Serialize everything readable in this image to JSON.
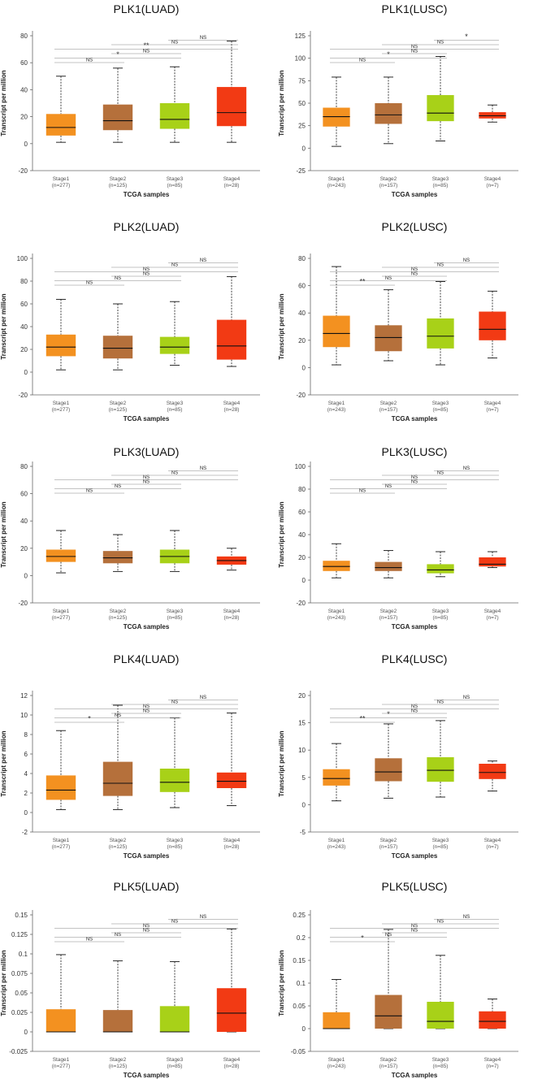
{
  "chart_data": [
    {
      "type": "box",
      "title": "PLK1(LUAD)",
      "xlabel": "TCGA samples",
      "ylabel": "Transcript per million",
      "ylim": [
        -20,
        80
      ],
      "yticks": [
        -20,
        0,
        20,
        40,
        60,
        80
      ],
      "yticklabels": [
        "-20",
        "0",
        "20",
        "40",
        "60",
        "80"
      ],
      "categories": [
        "Stage1",
        "Stage2",
        "Stage3",
        "Stage4"
      ],
      "counts": [
        "(n=277)",
        "(n=125)",
        "(n=85)",
        "(n=28)"
      ],
      "colors": [
        "#f39120",
        "#b5703b",
        "#a8d118",
        "#f23a14"
      ],
      "boxes": [
        {
          "min": 1,
          "q1": 6,
          "median": 12,
          "q3": 22,
          "max": 50
        },
        {
          "min": 1,
          "q1": 10,
          "median": 17,
          "q3": 29,
          "max": 56
        },
        {
          "min": 1,
          "q1": 11,
          "median": 18,
          "q3": 30,
          "max": 57
        },
        {
          "min": 1,
          "q1": 13,
          "median": 23,
          "q3": 42,
          "max": 76
        }
      ],
      "comparisons": [
        {
          "from": 0,
          "to": 1,
          "label": "NS"
        },
        {
          "from": 0,
          "to": 2,
          "label": "*"
        },
        {
          "from": 0,
          "to": 3,
          "label": "**"
        },
        {
          "from": 1,
          "to": 2,
          "label": "NS"
        },
        {
          "from": 1,
          "to": 3,
          "label": "NS"
        },
        {
          "from": 2,
          "to": 3,
          "label": "NS"
        }
      ]
    },
    {
      "type": "box",
      "title": "PLK1(LUSC)",
      "xlabel": "TCGA samples",
      "ylabel": "Transcript per million",
      "ylim": [
        -25,
        125
      ],
      "yticks": [
        -25,
        0,
        25,
        50,
        75,
        100,
        125
      ],
      "yticklabels": [
        "-25",
        "0",
        "25",
        "50",
        "75",
        "100",
        "125"
      ],
      "categories": [
        "Stage1",
        "Stage2",
        "Stage3",
        "Stage4"
      ],
      "counts": [
        "(n=243)",
        "(n=157)",
        "(n=85)",
        "(n=7)"
      ],
      "colors": [
        "#f39120",
        "#b5703b",
        "#a8d118",
        "#f23a14"
      ],
      "boxes": [
        {
          "min": 2,
          "q1": 24,
          "median": 35,
          "q3": 45,
          "max": 79
        },
        {
          "min": 5,
          "q1": 27,
          "median": 37,
          "q3": 50,
          "max": 79
        },
        {
          "min": 8,
          "q1": 30,
          "median": 39,
          "q3": 59,
          "max": 102
        },
        {
          "min": 29,
          "q1": 33,
          "median": 36,
          "q3": 40,
          "max": 48
        }
      ],
      "comparisons": [
        {
          "from": 0,
          "to": 1,
          "label": "NS"
        },
        {
          "from": 0,
          "to": 2,
          "label": "*"
        },
        {
          "from": 0,
          "to": 3,
          "label": "NS"
        },
        {
          "from": 1,
          "to": 2,
          "label": "NS"
        },
        {
          "from": 1,
          "to": 3,
          "label": "NS"
        },
        {
          "from": 2,
          "to": 3,
          "label": "*"
        }
      ]
    },
    {
      "type": "box",
      "title": "PLK2(LUAD)",
      "xlabel": "TCGA samples",
      "ylabel": "Transcript per million",
      "ylim": [
        -20,
        100
      ],
      "yticks": [
        -20,
        0,
        20,
        40,
        60,
        80,
        100
      ],
      "yticklabels": [
        "-20",
        "0",
        "20",
        "40",
        "60",
        "80",
        "100"
      ],
      "categories": [
        "Stage1",
        "Stage2",
        "Stage3",
        "Stage4"
      ],
      "counts": [
        "(n=277)",
        "(n=125)",
        "(n=85)",
        "(n=28)"
      ],
      "colors": [
        "#f39120",
        "#b5703b",
        "#a8d118",
        "#f23a14"
      ],
      "boxes": [
        {
          "min": 2,
          "q1": 14,
          "median": 22,
          "q3": 33,
          "max": 64
        },
        {
          "min": 2,
          "q1": 12,
          "median": 21,
          "q3": 32,
          "max": 60
        },
        {
          "min": 6,
          "q1": 16,
          "median": 22,
          "q3": 31,
          "max": 62
        },
        {
          "min": 5,
          "q1": 11,
          "median": 23,
          "q3": 46,
          "max": 84
        }
      ],
      "comparisons": [
        {
          "from": 0,
          "to": 1,
          "label": "NS"
        },
        {
          "from": 0,
          "to": 2,
          "label": "NS"
        },
        {
          "from": 0,
          "to": 3,
          "label": "NS"
        },
        {
          "from": 1,
          "to": 2,
          "label": "NS"
        },
        {
          "from": 1,
          "to": 3,
          "label": "NS"
        },
        {
          "from": 2,
          "to": 3,
          "label": "NS"
        }
      ]
    },
    {
      "type": "box",
      "title": "PLK2(LUSC)",
      "xlabel": "TCGA samples",
      "ylabel": "Transcript per million",
      "ylim": [
        -20,
        80
      ],
      "yticks": [
        -20,
        0,
        20,
        40,
        60,
        80
      ],
      "yticklabels": [
        "-20",
        "0",
        "20",
        "40",
        "60",
        "80"
      ],
      "categories": [
        "Stage1",
        "Stage2",
        "Stage3",
        "Stage4"
      ],
      "counts": [
        "(n=243)",
        "(n=157)",
        "(n=85)",
        "(n=7)"
      ],
      "colors": [
        "#f39120",
        "#b5703b",
        "#a8d118",
        "#f23a14"
      ],
      "boxes": [
        {
          "min": 2,
          "q1": 15,
          "median": 25,
          "q3": 38,
          "max": 74
        },
        {
          "min": 5,
          "q1": 12,
          "median": 22,
          "q3": 31,
          "max": 57
        },
        {
          "min": 2,
          "q1": 14,
          "median": 23,
          "q3": 36,
          "max": 63
        },
        {
          "min": 7,
          "q1": 20,
          "median": 28,
          "q3": 41,
          "max": 56
        }
      ],
      "comparisons": [
        {
          "from": 0,
          "to": 1,
          "label": "**"
        },
        {
          "from": 0,
          "to": 2,
          "label": "NS"
        },
        {
          "from": 0,
          "to": 3,
          "label": "NS"
        },
        {
          "from": 1,
          "to": 2,
          "label": "NS"
        },
        {
          "from": 1,
          "to": 3,
          "label": "NS"
        },
        {
          "from": 2,
          "to": 3,
          "label": "NS"
        }
      ]
    },
    {
      "type": "box",
      "title": "PLK3(LUAD)",
      "xlabel": "TCGA samples",
      "ylabel": "Transcript per million",
      "ylim": [
        -20,
        80
      ],
      "yticks": [
        -20,
        0,
        20,
        40,
        60,
        80
      ],
      "yticklabels": [
        "-20",
        "0",
        "20",
        "40",
        "60",
        "80"
      ],
      "categories": [
        "Stage1",
        "Stage2",
        "Stage3",
        "Stage4"
      ],
      "counts": [
        "(n=277)",
        "(n=125)",
        "(n=85)",
        "(n=28)"
      ],
      "colors": [
        "#f39120",
        "#b5703b",
        "#a8d118",
        "#f23a14"
      ],
      "boxes": [
        {
          "min": 2,
          "q1": 10,
          "median": 14,
          "q3": 19,
          "max": 33
        },
        {
          "min": 3,
          "q1": 9,
          "median": 13,
          "q3": 18,
          "max": 30
        },
        {
          "min": 3,
          "q1": 9,
          "median": 14,
          "q3": 19,
          "max": 33
        },
        {
          "min": 4,
          "q1": 8,
          "median": 11,
          "q3": 14,
          "max": 20
        }
      ],
      "comparisons": [
        {
          "from": 0,
          "to": 1,
          "label": "NS"
        },
        {
          "from": 0,
          "to": 2,
          "label": "NS"
        },
        {
          "from": 0,
          "to": 3,
          "label": "NS"
        },
        {
          "from": 1,
          "to": 2,
          "label": "NS"
        },
        {
          "from": 1,
          "to": 3,
          "label": "NS"
        },
        {
          "from": 2,
          "to": 3,
          "label": "NS"
        }
      ]
    },
    {
      "type": "box",
      "title": "PLK3(LUSC)",
      "xlabel": "TCGA samples",
      "ylabel": "Transcript per million",
      "ylim": [
        -20,
        100
      ],
      "yticks": [
        -20,
        0,
        20,
        40,
        60,
        80,
        100
      ],
      "yticklabels": [
        "-20",
        "0",
        "20",
        "40",
        "60",
        "80",
        "100"
      ],
      "categories": [
        "Stage1",
        "Stage2",
        "Stage3",
        "Stage4"
      ],
      "counts": [
        "(n=243)",
        "(n=157)",
        "(n=85)",
        "(n=7)"
      ],
      "colors": [
        "#f39120",
        "#b5703b",
        "#a8d118",
        "#f23a14"
      ],
      "boxes": [
        {
          "min": 2,
          "q1": 8,
          "median": 12,
          "q3": 17,
          "max": 32
        },
        {
          "min": 2,
          "q1": 8,
          "median": 11,
          "q3": 16,
          "max": 26
        },
        {
          "min": 3,
          "q1": 6,
          "median": 9,
          "q3": 14,
          "max": 25
        },
        {
          "min": 11,
          "q1": 12,
          "median": 14,
          "q3": 20,
          "max": 25
        }
      ],
      "comparisons": [
        {
          "from": 0,
          "to": 1,
          "label": "NS"
        },
        {
          "from": 0,
          "to": 2,
          "label": "NS"
        },
        {
          "from": 0,
          "to": 3,
          "label": "NS"
        },
        {
          "from": 1,
          "to": 2,
          "label": "NS"
        },
        {
          "from": 1,
          "to": 3,
          "label": "NS"
        },
        {
          "from": 2,
          "to": 3,
          "label": "NS"
        }
      ]
    },
    {
      "type": "box",
      "title": "PLK4(LUAD)",
      "xlabel": "TCGA samples",
      "ylabel": "Transcript per million",
      "ylim": [
        -2,
        12
      ],
      "yticks": [
        -2,
        0,
        2,
        4,
        6,
        8,
        10,
        12
      ],
      "yticklabels": [
        "-2",
        "0",
        "2",
        "4",
        "6",
        "8",
        "10",
        "12"
      ],
      "categories": [
        "Stage1",
        "Stage2",
        "Stage3",
        "Stage4"
      ],
      "counts": [
        "(n=277)",
        "(n=125)",
        "(n=85)",
        "(n=28)"
      ],
      "colors": [
        "#f39120",
        "#b5703b",
        "#a8d118",
        "#f23a14"
      ],
      "boxes": [
        {
          "min": 0.3,
          "q1": 1.3,
          "median": 2.3,
          "q3": 3.8,
          "max": 8.4
        },
        {
          "min": 0.3,
          "q1": 1.7,
          "median": 3.0,
          "q3": 5.2,
          "max": 11.0
        },
        {
          "min": 0.5,
          "q1": 2.1,
          "median": 3.1,
          "q3": 4.5,
          "max": 9.7
        },
        {
          "min": 0.7,
          "q1": 2.5,
          "median": 3.2,
          "q3": 4.1,
          "max": 10.2
        }
      ],
      "comparisons": [
        {
          "from": 0,
          "to": 1,
          "label": "*"
        },
        {
          "from": 0,
          "to": 2,
          "label": "NS"
        },
        {
          "from": 0,
          "to": 3,
          "label": "NS"
        },
        {
          "from": 1,
          "to": 2,
          "label": "NS"
        },
        {
          "from": 1,
          "to": 3,
          "label": "NS"
        },
        {
          "from": 2,
          "to": 3,
          "label": "NS"
        }
      ]
    },
    {
      "type": "box",
      "title": "PLK4(LUSC)",
      "xlabel": "TCGA samples",
      "ylabel": "Transcript per million",
      "ylim": [
        -5,
        20
      ],
      "yticks": [
        -5,
        0,
        5,
        10,
        15,
        20
      ],
      "yticklabels": [
        "-5",
        "0",
        "5",
        "10",
        "15",
        "20"
      ],
      "categories": [
        "Stage1",
        "Stage2",
        "Stage3",
        "Stage4"
      ],
      "counts": [
        "(n=243)",
        "(n=157)",
        "(n=85)",
        "(n=7)"
      ],
      "colors": [
        "#f39120",
        "#b5703b",
        "#a8d118",
        "#f23a14"
      ],
      "boxes": [
        {
          "min": 0.7,
          "q1": 3.5,
          "median": 4.8,
          "q3": 6.5,
          "max": 11.2
        },
        {
          "min": 1.2,
          "q1": 4.3,
          "median": 6.0,
          "q3": 8.5,
          "max": 14.8
        },
        {
          "min": 1.4,
          "q1": 4.2,
          "median": 6.3,
          "q3": 8.7,
          "max": 15.4
        },
        {
          "min": 2.5,
          "q1": 4.7,
          "median": 5.9,
          "q3": 7.5,
          "max": 8.0
        }
      ],
      "comparisons": [
        {
          "from": 0,
          "to": 1,
          "label": "**"
        },
        {
          "from": 0,
          "to": 2,
          "label": "*"
        },
        {
          "from": 0,
          "to": 3,
          "label": "NS"
        },
        {
          "from": 1,
          "to": 2,
          "label": "NS"
        },
        {
          "from": 1,
          "to": 3,
          "label": "NS"
        },
        {
          "from": 2,
          "to": 3,
          "label": "NS"
        }
      ]
    },
    {
      "type": "box",
      "title": "PLK5(LUAD)",
      "xlabel": "TCGA samples",
      "ylabel": "Transcript per million",
      "ylim": [
        -0.025,
        0.15
      ],
      "yticks": [
        -0.025,
        0,
        0.025,
        0.05,
        0.075,
        0.1,
        0.125,
        0.15
      ],
      "yticklabels": [
        "-0.025",
        "0",
        "0.025",
        "0.05",
        "0.075",
        "0.1",
        "0.125",
        "0.15"
      ],
      "categories": [
        "Stage1",
        "Stage2",
        "Stage3",
        "Stage4"
      ],
      "counts": [
        "(n=277)",
        "(n=125)",
        "(n=85)",
        "(n=28)"
      ],
      "colors": [
        "#f39120",
        "#b5703b",
        "#a8d118",
        "#f23a14"
      ],
      "boxes": [
        {
          "min": 0,
          "q1": 0,
          "median": 0,
          "q3": 0.029,
          "max": 0.099
        },
        {
          "min": 0,
          "q1": 0,
          "median": 0,
          "q3": 0.028,
          "max": 0.091
        },
        {
          "min": 0,
          "q1": 0,
          "median": 0,
          "q3": 0.033,
          "max": 0.09
        },
        {
          "min": 0,
          "q1": 0,
          "median": 0.024,
          "q3": 0.056,
          "max": 0.132
        }
      ],
      "comparisons": [
        {
          "from": 0,
          "to": 1,
          "label": "NS"
        },
        {
          "from": 0,
          "to": 2,
          "label": "NS"
        },
        {
          "from": 0,
          "to": 3,
          "label": "NS"
        },
        {
          "from": 1,
          "to": 2,
          "label": "NS"
        },
        {
          "from": 1,
          "to": 3,
          "label": "NS"
        },
        {
          "from": 2,
          "to": 3,
          "label": "NS"
        }
      ]
    },
    {
      "type": "box",
      "title": "PLK5(LUSC)",
      "xlabel": "TCGA samples",
      "ylabel": "Transcript per million",
      "ylim": [
        -0.05,
        0.25
      ],
      "yticks": [
        -0.05,
        0,
        0.05,
        0.1,
        0.15,
        0.2,
        0.25
      ],
      "yticklabels": [
        "-0.05",
        "0",
        "0.05",
        "0.1",
        "0.15",
        "0.2",
        "0.25"
      ],
      "categories": [
        "Stage1",
        "Stage2",
        "Stage3",
        "Stage4"
      ],
      "counts": [
        "(n=243)",
        "(n=157)",
        "(n=85)",
        "(n=7)"
      ],
      "colors": [
        "#f39120",
        "#b5703b",
        "#a8d118",
        "#f23a14"
      ],
      "boxes": [
        {
          "min": 0,
          "q1": 0,
          "median": 0,
          "q3": 0.036,
          "max": 0.108
        },
        {
          "min": 0,
          "q1": 0,
          "median": 0.028,
          "q3": 0.074,
          "max": 0.218
        },
        {
          "min": 0,
          "q1": 0,
          "median": 0.016,
          "q3": 0.059,
          "max": 0.161
        },
        {
          "min": 0,
          "q1": 0,
          "median": 0.016,
          "q3": 0.038,
          "max": 0.065
        }
      ],
      "comparisons": [
        {
          "from": 0,
          "to": 1,
          "label": "*"
        },
        {
          "from": 0,
          "to": 2,
          "label": "NS"
        },
        {
          "from": 0,
          "to": 3,
          "label": "NS"
        },
        {
          "from": 1,
          "to": 2,
          "label": "NS"
        },
        {
          "from": 1,
          "to": 3,
          "label": "NS"
        },
        {
          "from": 2,
          "to": 3,
          "label": "NS"
        }
      ]
    }
  ]
}
